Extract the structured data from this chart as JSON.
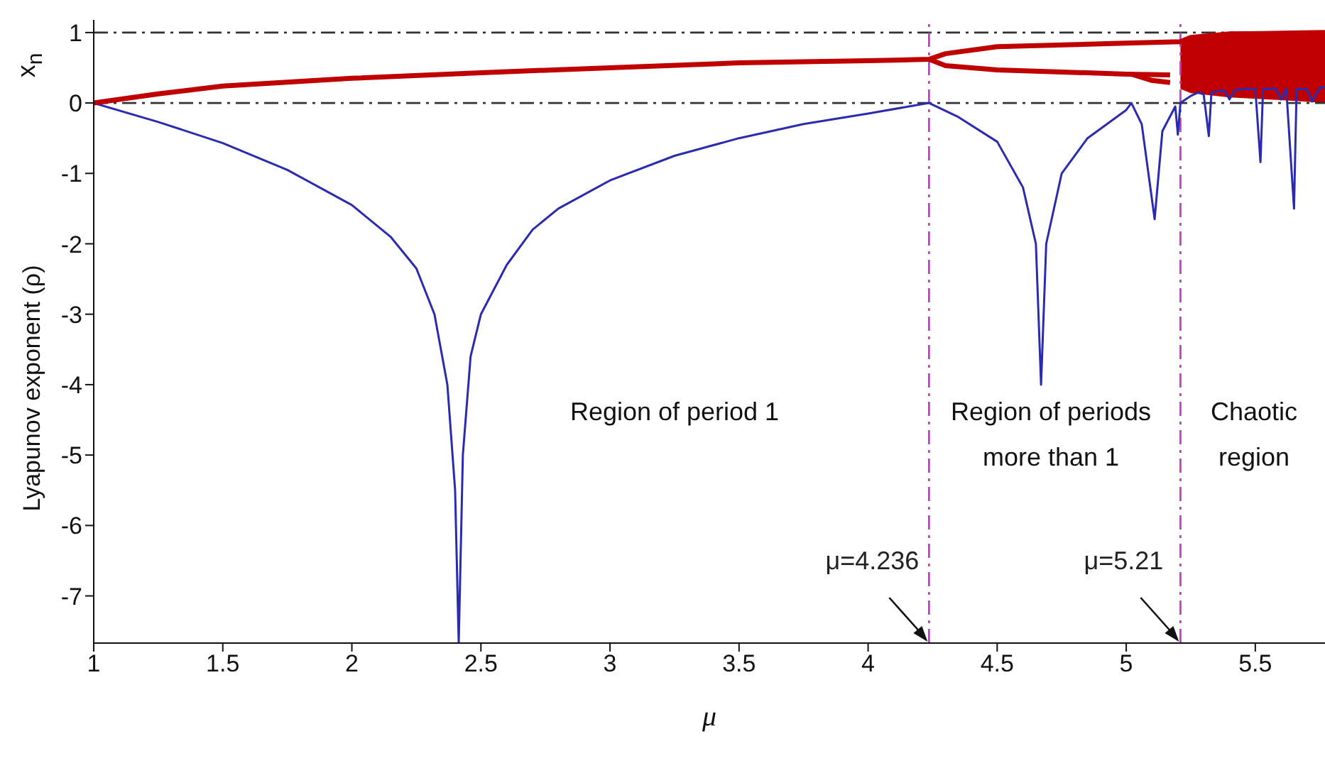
{
  "chart_data": {
    "type": "line",
    "xlabel": "μ",
    "ylabel": "Lyapunov exponent (ρ)",
    "xlim": [
      1,
      5.77
    ],
    "ylim": [
      -7.67,
      1.18
    ],
    "xticks": [
      1,
      1.5,
      2,
      2.5,
      3,
      3.5,
      4,
      4.5,
      5,
      5.5
    ],
    "yticks": [
      -7,
      -6,
      -5,
      -4,
      -3,
      -2,
      -1,
      0,
      1
    ],
    "grid": false,
    "series": [
      {
        "color": "#2b2bb0",
        "x": [
          1,
          1.25,
          1.5,
          1.75,
          2,
          2.15,
          2.25,
          2.32,
          2.37,
          2.4,
          2.414,
          2.43,
          2.46,
          2.5,
          2.6,
          2.7,
          2.8,
          3,
          3.25,
          3.5,
          3.75,
          4,
          4.236,
          4.35,
          4.5,
          4.6,
          4.65,
          4.67,
          4.69,
          4.75,
          4.85,
          5,
          5.02,
          5.06,
          5.11,
          5.14,
          5.19,
          5.2,
          5.21,
          5.23,
          5.25,
          5.28,
          5.3,
          5.32,
          5.33,
          5.38,
          5.4,
          5.42,
          5.45,
          5.5,
          5.52,
          5.53,
          5.58,
          5.6,
          5.62,
          5.65,
          5.66,
          5.7,
          5.72,
          5.75,
          5.77
        ],
        "values": [
          0,
          -0.27,
          -0.57,
          -0.95,
          -1.45,
          -1.9,
          -2.35,
          -3,
          -4,
          -5.5,
          -7.67,
          -5,
          -3.6,
          -3,
          -2.3,
          -1.8,
          -1.5,
          -1.1,
          -0.75,
          -0.5,
          -0.3,
          -0.15,
          0,
          -0.2,
          -0.55,
          -1.2,
          -2,
          -4,
          -2,
          -1,
          -0.5,
          -0.1,
          0,
          -0.3,
          -1.65,
          -0.4,
          -0.05,
          -0.45,
          0,
          0.05,
          0.1,
          0.15,
          0.12,
          -0.47,
          0.15,
          0.18,
          0.05,
          0.18,
          0.2,
          0.2,
          -0.84,
          0.2,
          0.2,
          0.05,
          0.2,
          -1.5,
          0.2,
          0.2,
          0.02,
          0.22,
          0.22
        ]
      },
      {
        "color": "#c00000",
        "x": [
          1,
          1.25,
          1.5,
          2,
          2.5,
          3,
          3.5,
          4,
          4.236,
          4.3,
          4.5,
          5,
          5.21,
          5.25,
          5.4,
          5.6,
          5.77
        ],
        "values": [
          0,
          0.13,
          0.24,
          0.35,
          0.43,
          0.5,
          0.57,
          0.6,
          0.62,
          0.7,
          0.8,
          0.85,
          0.87,
          0.93,
          0.98,
          0.99,
          1
        ],
        "lower": [
          null,
          null,
          null,
          null,
          null,
          null,
          null,
          null,
          null,
          null,
          null,
          null,
          0.2,
          0.14,
          0.08,
          0.04,
          0
        ],
        "upper": [
          null,
          null,
          null,
          null,
          null,
          null,
          null,
          null,
          null,
          null,
          null,
          null,
          0.87,
          0.93,
          0.98,
          0.99,
          1
        ]
      },
      {
        "color": "#c00000",
        "x": [
          4.236,
          4.3,
          4.5,
          5,
          5.17
        ],
        "values": [
          0.62,
          0.53,
          0.47,
          0.41,
          0.4
        ]
      },
      {
        "color": "#c00000",
        "x": [
          5.02,
          5.1,
          5.17
        ],
        "values": [
          0.41,
          0.32,
          0.29
        ]
      }
    ],
    "ref_lines": [
      {
        "axis": "y",
        "value": 1,
        "color": "#333333",
        "line_style": "dashed"
      },
      {
        "axis": "y",
        "value": 0,
        "color": "#333333",
        "line_style": "dashed"
      },
      {
        "axis": "x",
        "value": 4.236,
        "color": "#c040c0",
        "line_style": "dashed"
      },
      {
        "axis": "x",
        "value": 5.21,
        "color": "#c040c0",
        "line_style": "dashed"
      }
    ],
    "annotations": [
      "x$_{n}$",
      "Region of period 1",
      "Region of periods\nmore than 1",
      "Chaotic\nregion",
      {
        "text": "μ=4.236",
        "x": 4.236,
        "y": -7.67
      },
      {
        "text": "μ=5.21",
        "x": 5.21,
        "y": -7.67
      }
    ]
  }
}
